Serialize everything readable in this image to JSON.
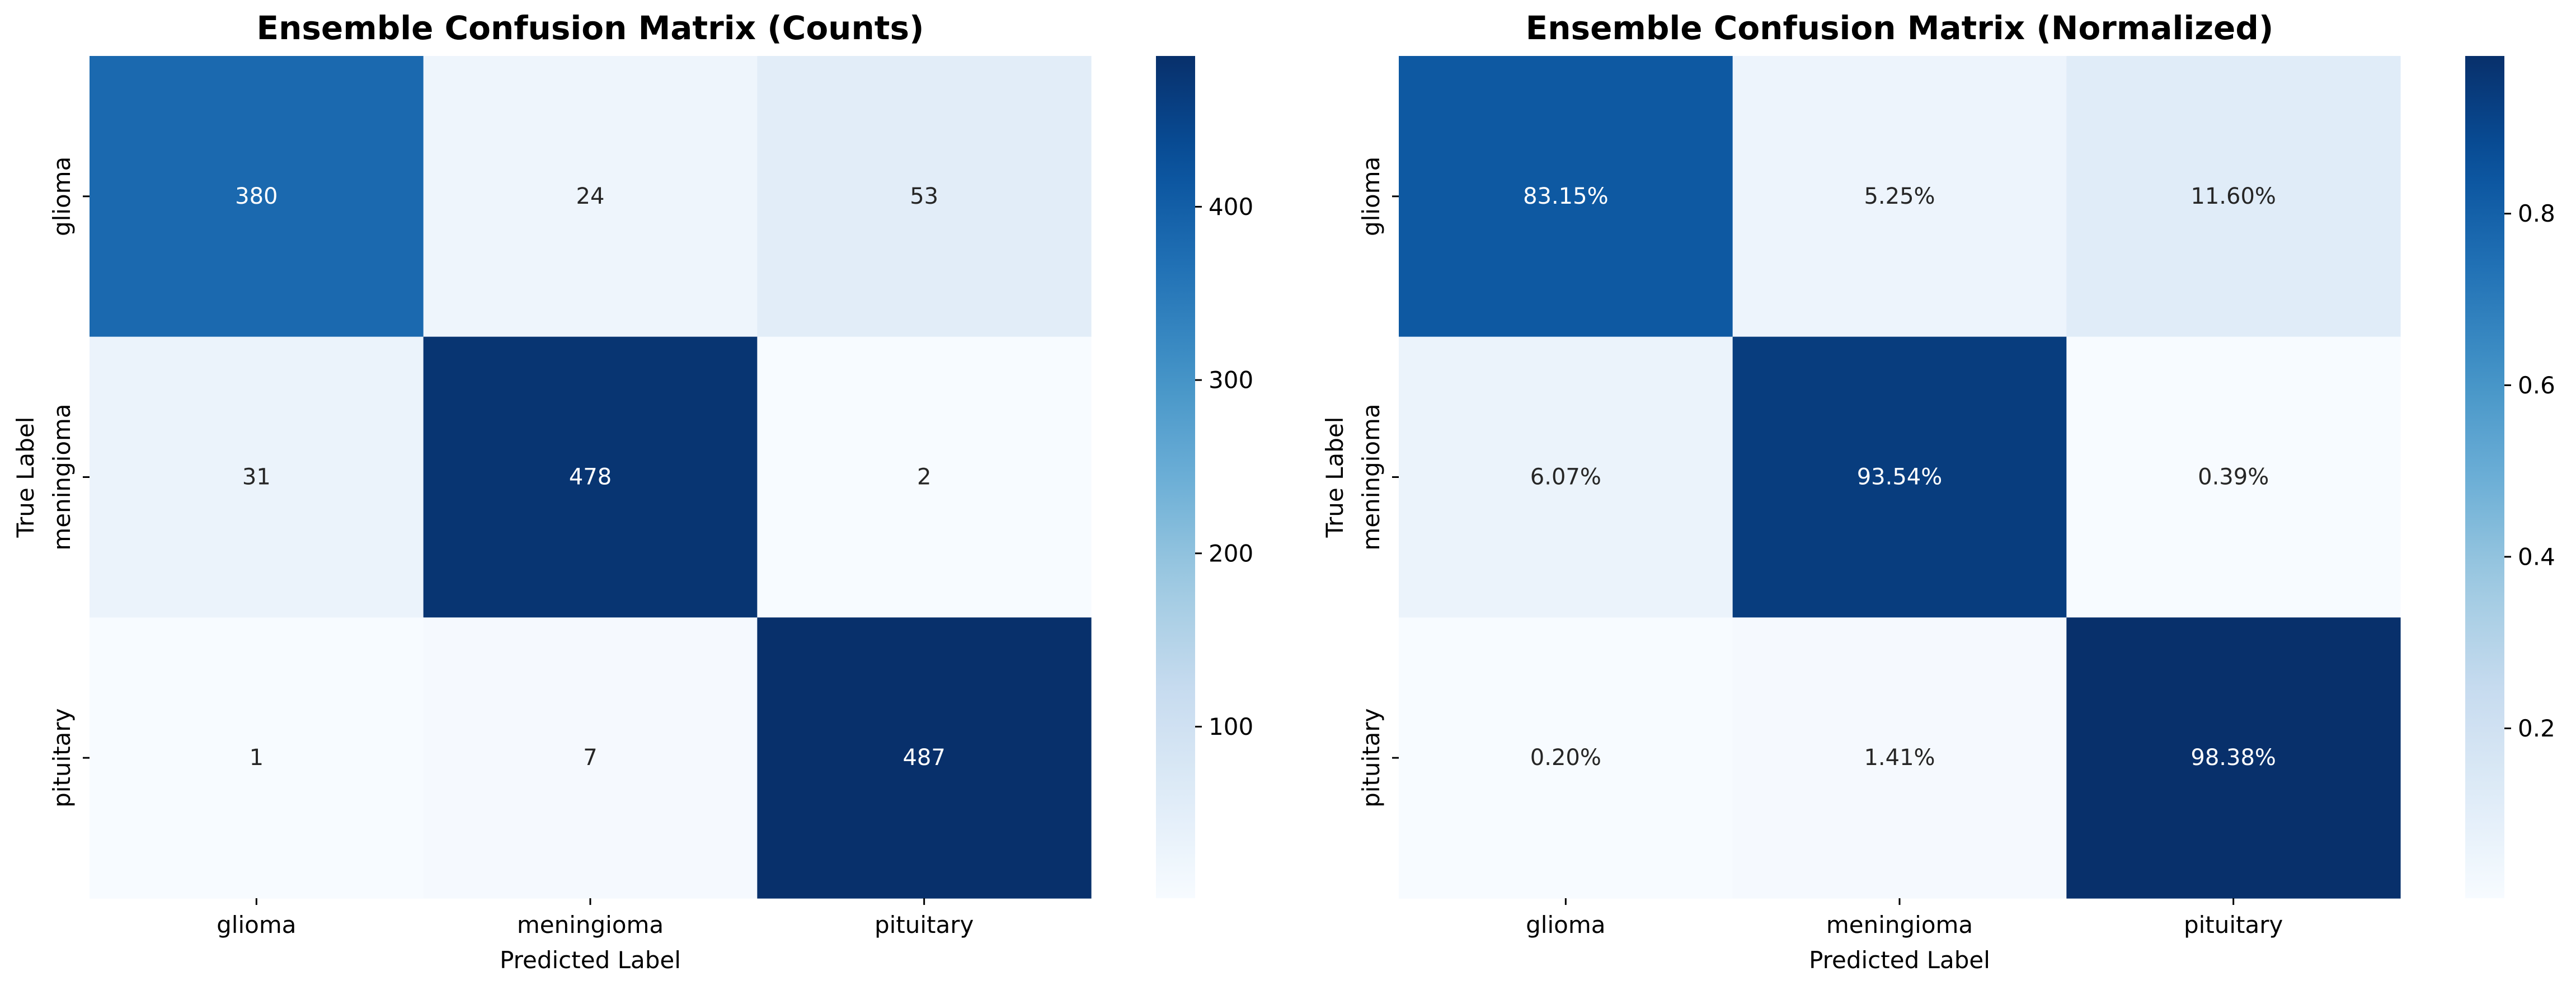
{
  "colors": {
    "colormap": "Blues",
    "ramp": [
      "#f7fbff",
      "#deebf7",
      "#c6dbef",
      "#9ecae1",
      "#6baed6",
      "#4292c6",
      "#2171b5",
      "#08519c",
      "#08306b"
    ],
    "text_dark": "#262626",
    "text_light": "#ffffff"
  },
  "chart_data": [
    {
      "type": "heatmap",
      "title": "Ensemble Confusion Matrix (Counts)",
      "xlabel": "Predicted Label",
      "ylabel": "True Label",
      "x_categories": [
        "glioma",
        "meningioma",
        "pituitary"
      ],
      "y_categories": [
        "glioma",
        "meningioma",
        "pituitary"
      ],
      "values": [
        [
          380,
          24,
          53
        ],
        [
          31,
          478,
          2
        ],
        [
          1,
          7,
          487
        ]
      ],
      "cell_labels": [
        [
          "380",
          "24",
          "53"
        ],
        [
          "31",
          "478",
          "2"
        ],
        [
          "1",
          "7",
          "487"
        ]
      ],
      "color_range": [
        1,
        487
      ],
      "colorbar": {
        "ticks": [
          100,
          200,
          300,
          400
        ],
        "tick_labels": [
          "100",
          "200",
          "300",
          "400"
        ]
      }
    },
    {
      "type": "heatmap",
      "title": "Ensemble Confusion Matrix (Normalized)",
      "xlabel": "Predicted Label",
      "ylabel": "True Label",
      "x_categories": [
        "glioma",
        "meningioma",
        "pituitary"
      ],
      "y_categories": [
        "glioma",
        "meningioma",
        "pituitary"
      ],
      "values": [
        [
          0.8315,
          0.0525,
          0.116
        ],
        [
          0.0607,
          0.9354,
          0.0039
        ],
        [
          0.002,
          0.0141,
          0.9838
        ]
      ],
      "cell_labels": [
        [
          "83.15%",
          "5.25%",
          "11.60%"
        ],
        [
          "6.07%",
          "93.54%",
          "0.39%"
        ],
        [
          "0.20%",
          "1.41%",
          "98.38%"
        ]
      ],
      "color_range": [
        0.002,
        0.9838
      ],
      "colorbar": {
        "ticks": [
          0.2,
          0.4,
          0.6,
          0.8
        ],
        "tick_labels": [
          "0.2",
          "0.4",
          "0.6",
          "0.8"
        ]
      }
    }
  ]
}
